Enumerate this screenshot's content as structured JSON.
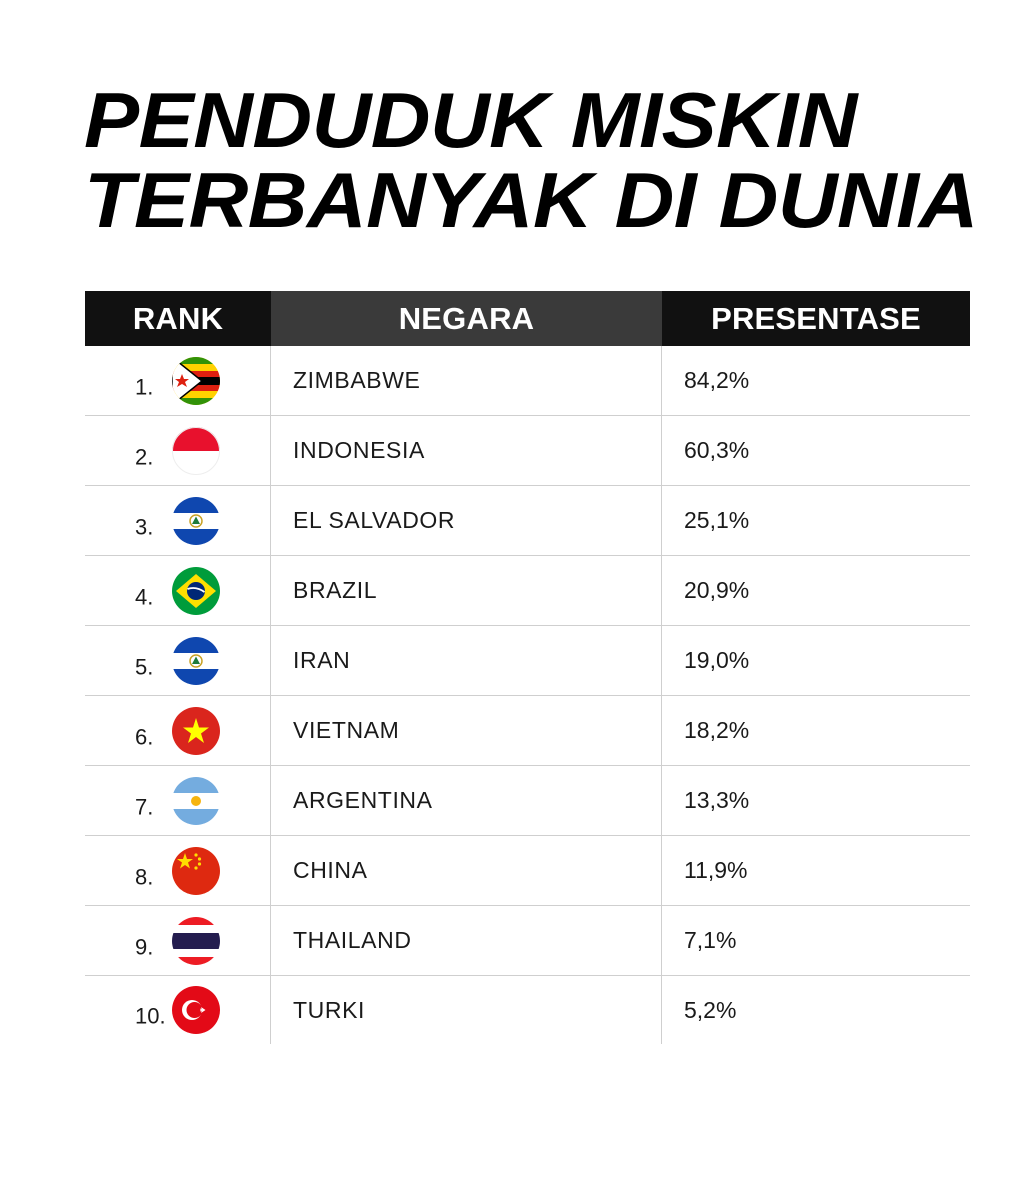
{
  "title": {
    "line1": "PENDUDUK MISKIN",
    "line2": "TERBANYAK DI DUNIA"
  },
  "table": {
    "headers": {
      "rank": "RANK",
      "negara": "NEGARA",
      "presentase": "PRESENTASE"
    },
    "rows": [
      {
        "rank": "1.",
        "country": "ZIMBABWE",
        "percentage": "84,2%",
        "flag_icon": "zimbabwe-flag-icon"
      },
      {
        "rank": "2.",
        "country": "INDONESIA",
        "percentage": "60,3%",
        "flag_icon": "indonesia-flag-icon"
      },
      {
        "rank": "3.",
        "country": "EL SALVADOR",
        "percentage": "25,1%",
        "flag_icon": "el-salvador-flag-icon"
      },
      {
        "rank": "4.",
        "country": "BRAZIL",
        "percentage": "20,9%",
        "flag_icon": "brazil-flag-icon"
      },
      {
        "rank": "5.",
        "country": "IRAN",
        "percentage": "19,0%",
        "flag_icon": "el-salvador-flag-icon"
      },
      {
        "rank": "6.",
        "country": "VIETNAM",
        "percentage": "18,2%",
        "flag_icon": "vietnam-flag-icon"
      },
      {
        "rank": "7.",
        "country": "ARGENTINA",
        "percentage": "13,3%",
        "flag_icon": "argentina-flag-icon"
      },
      {
        "rank": "8.",
        "country": "CHINA",
        "percentage": "11,9%",
        "flag_icon": "china-flag-icon"
      },
      {
        "rank": "9.",
        "country": "THAILAND",
        "percentage": "7,1%",
        "flag_icon": "thailand-flag-icon"
      },
      {
        "rank": "10.",
        "country": "TURKI",
        "percentage": "5,2%",
        "flag_icon": "turkey-flag-icon"
      }
    ]
  },
  "colors": {
    "header_dark": "#111111",
    "header_mid": "#3a3a3a",
    "divider": "#cfcfcf"
  }
}
